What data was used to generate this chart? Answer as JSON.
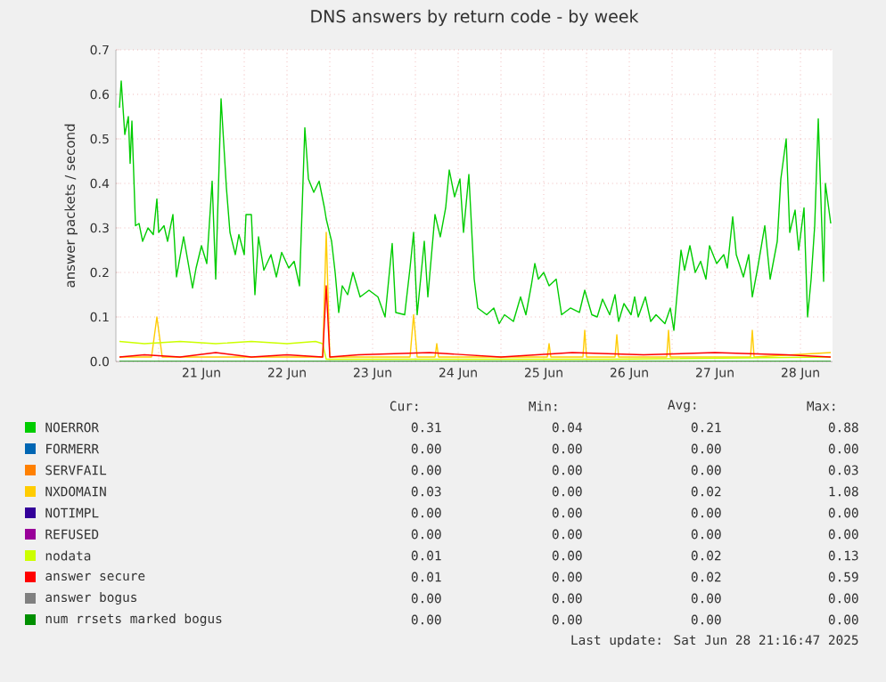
{
  "chart_data": {
    "type": "line",
    "title": "DNS answers by return code - by week",
    "ylabel": "answer packets / second",
    "xlim": [
      "2025-06-20T12:00",
      "2025-06-28T21:00"
    ],
    "ylim": [
      0,
      0.7
    ],
    "xticks": [
      {
        "value": "2025-06-21T00:00",
        "label": null
      },
      {
        "value": "2025-06-21T12:00",
        "label": "21 Jun"
      },
      {
        "value": "2025-06-22T00:00",
        "label": null
      },
      {
        "value": "2025-06-22T12:00",
        "label": "22 Jun"
      },
      {
        "value": "2025-06-23T00:00",
        "label": null
      },
      {
        "value": "2025-06-23T12:00",
        "label": "23 Jun"
      },
      {
        "value": "2025-06-24T00:00",
        "label": null
      },
      {
        "value": "2025-06-24T12:00",
        "label": "24 Jun"
      },
      {
        "value": "2025-06-25T00:00",
        "label": null
      },
      {
        "value": "2025-06-25T12:00",
        "label": "25 Jun"
      },
      {
        "value": "2025-06-26T00:00",
        "label": null
      },
      {
        "value": "2025-06-26T12:00",
        "label": "26 Jun"
      },
      {
        "value": "2025-06-27T00:00",
        "label": null
      },
      {
        "value": "2025-06-27T12:00",
        "label": "27 Jun"
      },
      {
        "value": "2025-06-28T00:00",
        "label": null
      },
      {
        "value": "2025-06-28T12:00",
        "label": "28 Jun"
      }
    ],
    "yticks": [
      {
        "value": 0,
        "label": "0.0"
      },
      {
        "value": 0.1,
        "label": "0.1"
      },
      {
        "value": 0.2,
        "label": "0.2"
      },
      {
        "value": 0.3,
        "label": "0.3"
      },
      {
        "value": 0.4,
        "label": "0.4"
      },
      {
        "value": 0.5,
        "label": "0.5"
      },
      {
        "value": 0.6,
        "label": "0.6"
      },
      {
        "value": 0.7,
        "label": "0.7"
      }
    ],
    "grid": true,
    "legend": "bottom",
    "series": [
      {
        "name": "NOERROR",
        "color": "#00cc00",
        "x": [
          "2025-06-20T13:00",
          "2025-06-20T13:30",
          "2025-06-20T14:30",
          "2025-06-20T15:30",
          "2025-06-20T16:00",
          "2025-06-20T16:30",
          "2025-06-20T17:30",
          "2025-06-20T18:30",
          "2025-06-20T19:30",
          "2025-06-20T21:00",
          "2025-06-20T22:30",
          "2025-06-20T23:30",
          "2025-06-21T00:00",
          "2025-06-21T01:30",
          "2025-06-21T02:30",
          "2025-06-21T04:00",
          "2025-06-21T05:00",
          "2025-06-21T07:00",
          "2025-06-21T09:30",
          "2025-06-21T10:30",
          "2025-06-21T12:00",
          "2025-06-21T13:30",
          "2025-06-21T15:00",
          "2025-06-21T16:00",
          "2025-06-21T17:30",
          "2025-06-21T19:00",
          "2025-06-21T20:00",
          "2025-06-21T21:30",
          "2025-06-21T22:30",
          "2025-06-22T00:00",
          "2025-06-22T00:30",
          "2025-06-22T02:00",
          "2025-06-22T03:00",
          "2025-06-22T04:00",
          "2025-06-22T05:30",
          "2025-06-22T07:30",
          "2025-06-22T09:00",
          "2025-06-22T10:30",
          "2025-06-22T12:30",
          "2025-06-22T14:00",
          "2025-06-22T15:30",
          "2025-06-22T17:00",
          "2025-06-22T18:00",
          "2025-06-22T19:30",
          "2025-06-22T21:00",
          "2025-06-22T22:30",
          "2025-06-22T23:00",
          "2025-06-23T00:30",
          "2025-06-23T01:30",
          "2025-06-23T02:30",
          "2025-06-23T03:30",
          "2025-06-23T05:00",
          "2025-06-23T06:30",
          "2025-06-23T08:30",
          "2025-06-23T11:00",
          "2025-06-23T13:30",
          "2025-06-23T15:30",
          "2025-06-23T17:30",
          "2025-06-23T18:30",
          "2025-06-23T21:00",
          "2025-06-23T22:30",
          "2025-06-23T23:30",
          "2025-06-24T00:30",
          "2025-06-24T02:30",
          "2025-06-24T03:30",
          "2025-06-24T05:30",
          "2025-06-24T07:00",
          "2025-06-24T08:30",
          "2025-06-24T09:30",
          "2025-06-24T11:00",
          "2025-06-24T12:30",
          "2025-06-24T13:30",
          "2025-06-24T15:00",
          "2025-06-24T16:30",
          "2025-06-24T17:30",
          "2025-06-24T20:00",
          "2025-06-24T22:00",
          "2025-06-24T23:30",
          "2025-06-25T01:00",
          "2025-06-25T03:30",
          "2025-06-25T05:30",
          "2025-06-25T07:00",
          "2025-06-25T08:30",
          "2025-06-25T09:30",
          "2025-06-25T10:30",
          "2025-06-25T12:00",
          "2025-06-25T13:30",
          "2025-06-25T15:30",
          "2025-06-25T17:00",
          "2025-06-25T19:30",
          "2025-06-25T22:00",
          "2025-06-25T23:30",
          "2025-06-26T01:30",
          "2025-06-26T03:00",
          "2025-06-26T04:30",
          "2025-06-26T06:30",
          "2025-06-26T08:00",
          "2025-06-26T09:00",
          "2025-06-26T10:30",
          "2025-06-26T12:30",
          "2025-06-26T13:30",
          "2025-06-26T14:30",
          "2025-06-26T16:30",
          "2025-06-26T18:00",
          "2025-06-26T19:30",
          "2025-06-26T22:00",
          "2025-06-26T23:30",
          "2025-06-27T00:30",
          "2025-06-27T02:30",
          "2025-06-27T03:30",
          "2025-06-27T05:00",
          "2025-06-27T06:30",
          "2025-06-27T08:00",
          "2025-06-27T09:30",
          "2025-06-27T10:30",
          "2025-06-27T12:30",
          "2025-06-27T14:30",
          "2025-06-27T15:30",
          "2025-06-27T17:00",
          "2025-06-27T18:00",
          "2025-06-27T20:00",
          "2025-06-27T21:30",
          "2025-06-27T22:30",
          "2025-06-28T00:00",
          "2025-06-28T02:00",
          "2025-06-28T03:30",
          "2025-06-28T05:30",
          "2025-06-28T06:30",
          "2025-06-28T08:00",
          "2025-06-28T09:00",
          "2025-06-28T10:30",
          "2025-06-28T11:30",
          "2025-06-28T13:00",
          "2025-06-28T14:00",
          "2025-06-28T15:00",
          "2025-06-28T16:00",
          "2025-06-28T17:00",
          "2025-06-28T18:30",
          "2025-06-28T19:00",
          "2025-06-28T20:30"
        ],
        "values": [
          0.57,
          0.63,
          0.51,
          0.55,
          0.445,
          0.54,
          0.305,
          0.31,
          0.27,
          0.3,
          0.285,
          0.365,
          0.29,
          0.305,
          0.27,
          0.33,
          0.19,
          0.28,
          0.165,
          0.21,
          0.26,
          0.22,
          0.405,
          0.185,
          0.59,
          0.39,
          0.29,
          0.24,
          0.285,
          0.24,
          0.33,
          0.33,
          0.15,
          0.28,
          0.205,
          0.24,
          0.19,
          0.245,
          0.21,
          0.225,
          0.17,
          0.525,
          0.41,
          0.38,
          0.405,
          0.345,
          0.32,
          0.27,
          0.2,
          0.11,
          0.17,
          0.15,
          0.2,
          0.145,
          0.16,
          0.145,
          0.1,
          0.265,
          0.11,
          0.105,
          0.21,
          0.29,
          0.105,
          0.27,
          0.145,
          0.33,
          0.28,
          0.345,
          0.43,
          0.37,
          0.41,
          0.29,
          0.42,
          0.185,
          0.12,
          0.105,
          0.12,
          0.085,
          0.105,
          0.09,
          0.145,
          0.105,
          0.17,
          0.22,
          0.185,
          0.2,
          0.17,
          0.185,
          0.105,
          0.12,
          0.11,
          0.16,
          0.105,
          0.1,
          0.14,
          0.105,
          0.15,
          0.09,
          0.13,
          0.105,
          0.145,
          0.1,
          0.145,
          0.09,
          0.105,
          0.085,
          0.12,
          0.07,
          0.25,
          0.205,
          0.26,
          0.2,
          0.225,
          0.185,
          0.26,
          0.22,
          0.24,
          0.21,
          0.325,
          0.24,
          0.19,
          0.24,
          0.145,
          0.21,
          0.305,
          0.185,
          0.27,
          0.41,
          0.5,
          0.29,
          0.34,
          0.25,
          0.345,
          0.1,
          0.185,
          0.305,
          0.545,
          0.18,
          0.4,
          0.31
        ]
      },
      {
        "name": "FORMERR",
        "color": "#0066b3"
      },
      {
        "name": "SERVFAIL",
        "color": "#ff8000"
      },
      {
        "name": "NXDOMAIN",
        "color": "#ffcc00",
        "x": [
          "2025-06-20T13:00",
          "2025-06-20T22:00",
          "2025-06-20T23:30",
          "2025-06-21T01:00",
          "2025-06-22T22:00",
          "2025-06-22T23:00",
          "2025-06-23T00:00",
          "2025-06-23T22:30",
          "2025-06-23T23:30",
          "2025-06-24T00:30",
          "2025-06-24T05:30",
          "2025-06-24T06:00",
          "2025-06-24T06:30",
          "2025-06-25T13:00",
          "2025-06-25T13:30",
          "2025-06-25T14:00",
          "2025-06-25T23:00",
          "2025-06-25T23:30",
          "2025-06-26T00:00",
          "2025-06-26T08:00",
          "2025-06-26T08:30",
          "2025-06-26T09:00",
          "2025-06-26T22:30",
          "2025-06-26T23:00",
          "2025-06-26T23:30",
          "2025-06-27T22:00",
          "2025-06-27T22:30",
          "2025-06-27T23:00",
          "2025-06-28T20:30"
        ],
        "values": [
          0.01,
          0.01,
          0.1,
          0.01,
          0.01,
          0.29,
          0.01,
          0.01,
          0.105,
          0.01,
          0.01,
          0.04,
          0.01,
          0.01,
          0.04,
          0.01,
          0.01,
          0.07,
          0.01,
          0.01,
          0.06,
          0.01,
          0.01,
          0.07,
          0.01,
          0.01,
          0.07,
          0.01,
          0.02
        ]
      },
      {
        "name": "NOTIMPL",
        "color": "#330099"
      },
      {
        "name": "REFUSED",
        "color": "#990099"
      },
      {
        "name": "nodata",
        "color": "#ccff00",
        "x": [
          "2025-06-20T13:00",
          "2025-06-20T20:00",
          "2025-06-21T06:00",
          "2025-06-21T16:00",
          "2025-06-22T02:00",
          "2025-06-22T12:00",
          "2025-06-22T20:00",
          "2025-06-22T22:00",
          "2025-06-22T23:00",
          "2025-06-24T04:00",
          "2025-06-26T06:00",
          "2025-06-28T20:30"
        ],
        "values": [
          0.045,
          0.04,
          0.045,
          0.04,
          0.045,
          0.04,
          0.045,
          0.04,
          0.005,
          0.005,
          0.005,
          0.01
        ]
      },
      {
        "name": "answer secure",
        "color": "#ff0000",
        "x": [
          "2025-06-20T13:00",
          "2025-06-20T20:00",
          "2025-06-21T06:00",
          "2025-06-21T16:00",
          "2025-06-22T02:00",
          "2025-06-22T12:00",
          "2025-06-22T22:00",
          "2025-06-22T23:00",
          "2025-06-23T00:00",
          "2025-06-23T08:00",
          "2025-06-24T04:00",
          "2025-06-25T00:00",
          "2025-06-25T20:00",
          "2025-06-26T16:00",
          "2025-06-27T12:00",
          "2025-06-28T08:00",
          "2025-06-28T20:30"
        ],
        "values": [
          0.01,
          0.015,
          0.01,
          0.02,
          0.01,
          0.015,
          0.01,
          0.17,
          0.01,
          0.015,
          0.02,
          0.01,
          0.02,
          0.015,
          0.02,
          0.015,
          0.01
        ]
      },
      {
        "name": "answer bogus",
        "color": "#808080"
      },
      {
        "name": "num rrsets marked bogus",
        "color": "#008f00",
        "x": [
          "2025-06-20T13:00",
          "2025-06-28T20:30"
        ],
        "values": [
          0,
          0
        ]
      }
    ],
    "annotations": [
      "Cur:",
      "Min:",
      "Avg:",
      "Max:",
      "0.31",
      "0.04",
      "0.21",
      "0.88",
      "0.00",
      "0.00",
      "0.00",
      "0.00",
      "0.00",
      "0.00",
      "0.00",
      "0.03",
      "0.03",
      "0.00",
      "0.02",
      "1.08",
      "0.00",
      "0.00",
      "0.00",
      "0.00",
      "0.00",
      "0.00",
      "0.00",
      "0.00",
      "0.01",
      "0.00",
      "0.02",
      "0.13",
      "0.01",
      "0.00",
      "0.02",
      "0.59",
      "0.00",
      "0.00",
      "0.00",
      "0.00",
      "0.00",
      "0.00",
      "0.00",
      "0.00",
      "Last update: Sat Jun 28 21:16:47 2025"
    ]
  }
}
